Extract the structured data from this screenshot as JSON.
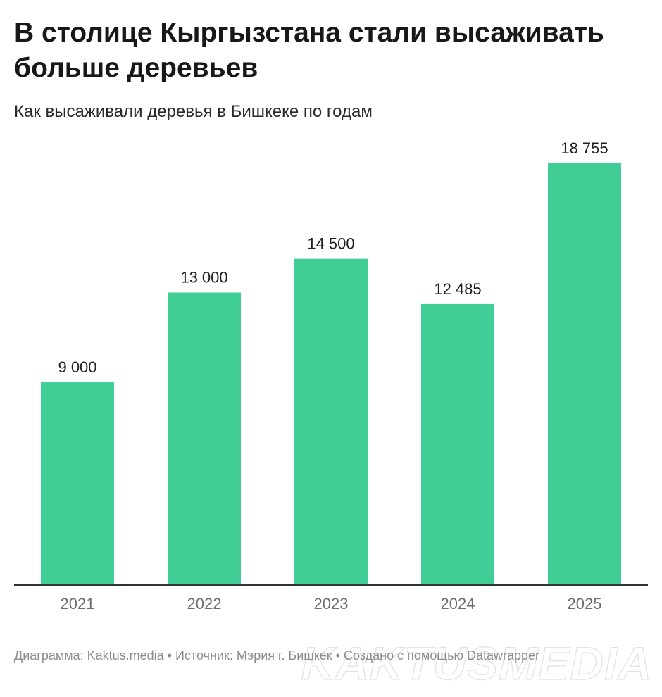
{
  "header": {
    "title": "В столице Кыргызстана стали высаживать больше деревьев",
    "subtitle": "Как высаживали деревья в Бишкеке по годам"
  },
  "footer": {
    "chart_credit": "Диаграмма: Kaktus.media",
    "separator": "•",
    "source": "Источник: Мэрия г. Бишкек",
    "made_with": "Создано с помощью Datawrapper"
  },
  "watermark": "KAKTUSMEDIA",
  "colors": {
    "bar": "#41cd96",
    "baseline": "#333333",
    "tick_text": "#6e6e6e",
    "label_text": "#1f1f1f"
  },
  "chart_data": {
    "type": "bar",
    "categories": [
      "2021",
      "2022",
      "2023",
      "2024",
      "2025"
    ],
    "values": [
      9000,
      13000,
      14500,
      12485,
      18755
    ],
    "value_labels": [
      "9 000",
      "13 000",
      "14 500",
      "12 485",
      "18 755"
    ],
    "ylim": [
      0,
      18755
    ],
    "grid": false,
    "legend": "none",
    "title": "В столице Кыргызстана стали высаживать больше деревьев",
    "subtitle": "Как высаживали деревья в Бишкеке по годам",
    "xlabel": "",
    "ylabel": ""
  }
}
